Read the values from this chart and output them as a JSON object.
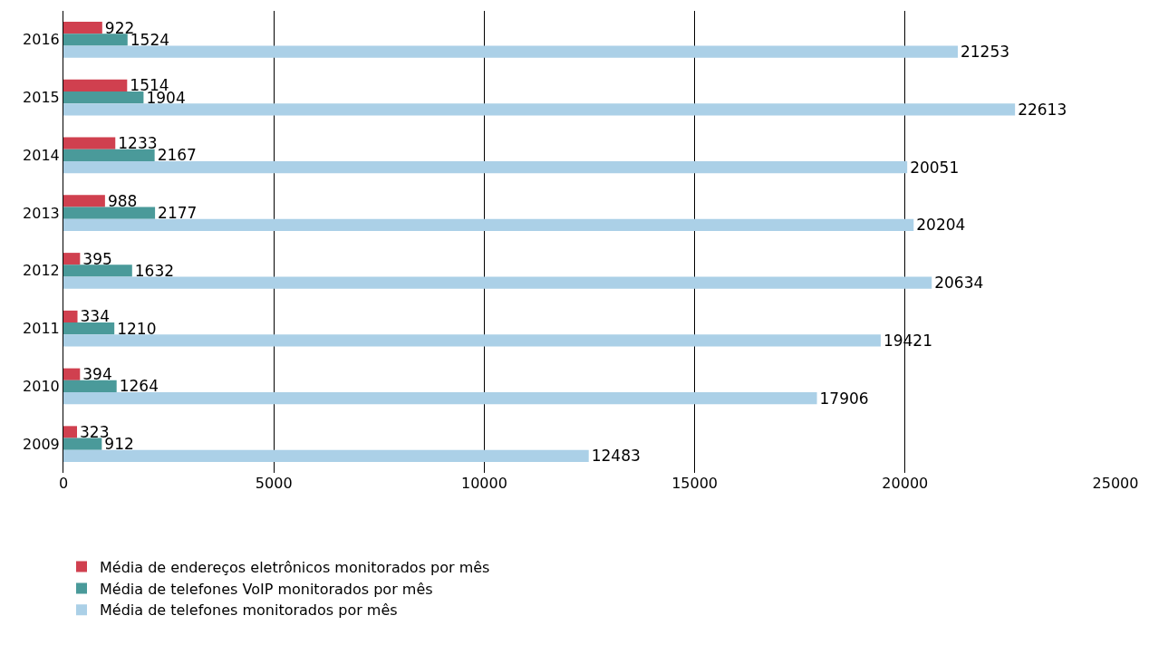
{
  "chart_data": {
    "type": "bar",
    "orientation": "horizontal",
    "categories": [
      "2016",
      "2015",
      "2014",
      "2013",
      "2012",
      "2011",
      "2010",
      "2009"
    ],
    "series": [
      {
        "name": "Média de endereços eletrônicos monitorados por mês",
        "color": "#d0404f",
        "values": [
          922,
          1514,
          1233,
          988,
          395,
          334,
          394,
          323
        ]
      },
      {
        "name": "Média de telefones VoIP monitorados por mês",
        "color": "#4a9a9a",
        "values": [
          1524,
          1904,
          2167,
          2177,
          1632,
          1210,
          1264,
          912
        ]
      },
      {
        "name": "Média de telefones monitorados por mês",
        "color": "#abd0e7",
        "values": [
          21253,
          22613,
          20051,
          20204,
          20634,
          19421,
          17906,
          12483
        ]
      }
    ],
    "xlim": [
      0,
      25000
    ],
    "xticks": [
      0,
      5000,
      10000,
      15000,
      20000,
      25000
    ],
    "grid": "x",
    "legend": "bottom",
    "data_labels": true
  }
}
